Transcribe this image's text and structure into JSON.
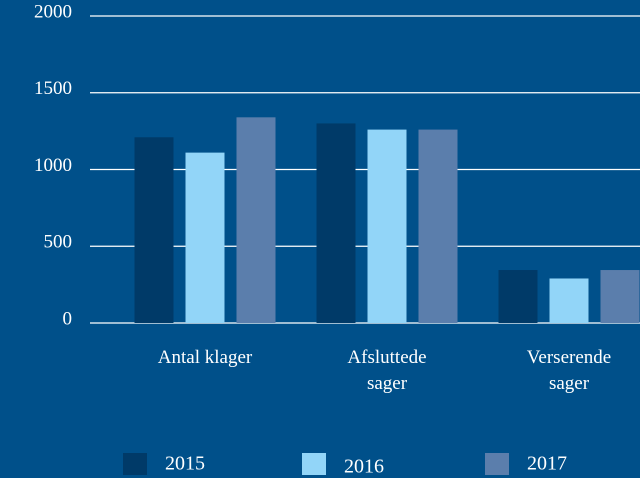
{
  "chart_data": {
    "type": "bar",
    "categories": [
      "Antal klager",
      "Afsluttede sager",
      "Verserende sager"
    ],
    "series": [
      {
        "name": "2015",
        "color": "#003a68",
        "values": [
          1210,
          1300,
          345
        ]
      },
      {
        "name": "2016",
        "color": "#92d5f8",
        "values": [
          1110,
          1260,
          290
        ]
      },
      {
        "name": "2017",
        "color": "#5b7eac",
        "values": [
          1340,
          1260,
          345
        ]
      }
    ],
    "ylim": [
      0,
      2000
    ],
    "yticks": [
      0,
      500,
      1000,
      1500,
      2000
    ],
    "grid": true
  }
}
